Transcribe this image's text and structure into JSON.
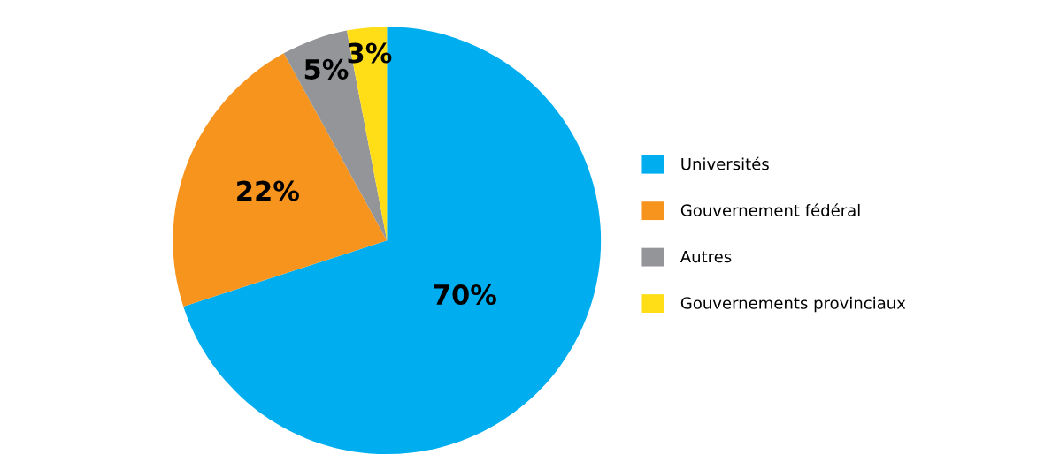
{
  "chart_data": {
    "type": "pie",
    "categories": [
      "Universités",
      "Gouvernement fédéral",
      "Autres",
      "Gouvernements provinciaux"
    ],
    "values": [
      70,
      22,
      5,
      3
    ],
    "colors": [
      "#00aeef",
      "#f7941d",
      "#939598",
      "#ffde17"
    ],
    "value_labels": [
      "70%",
      "22%",
      "5%",
      "3%"
    ],
    "legend": "right"
  }
}
